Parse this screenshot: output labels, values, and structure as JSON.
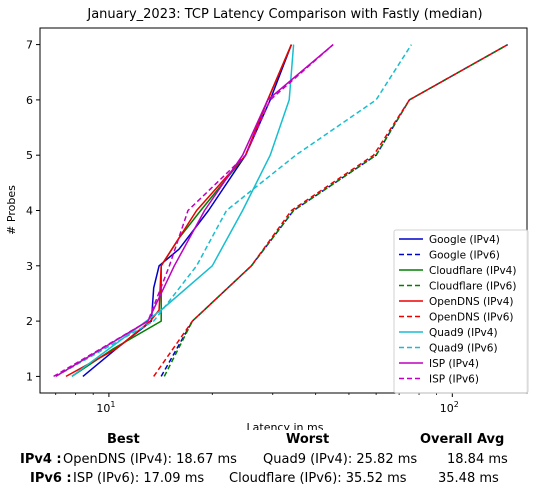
{
  "chart_data": {
    "type": "line",
    "title": "January_2023: TCP Latency Comparison with Fastly (median)",
    "xlabel": "Latency in ms",
    "ylabel": "# Probes",
    "xscale": "log",
    "xlim": [
      6.3,
      165
    ],
    "ylim": [
      0.7,
      7.3
    ],
    "xticks": [
      {
        "value": 10,
        "base": "10",
        "exp": "1"
      },
      {
        "value": 100,
        "base": "10",
        "exp": "2"
      }
    ],
    "yticks": [
      1,
      2,
      3,
      4,
      5,
      6,
      7
    ],
    "legend": "bottom-right",
    "series": [
      {
        "name": "Google (IPv4)",
        "color": "#0000cc",
        "dash": "solid",
        "x": [
          8.4,
          10.5,
          13.3,
          13.5,
          14.0,
          16.0,
          19.5,
          25.0,
          29.5,
          34.0
        ],
        "y": [
          1,
          1.5,
          2,
          2.6,
          3,
          3.3,
          4,
          5,
          6,
          7
        ]
      },
      {
        "name": "Google (IPv6)",
        "color": "#0000cc",
        "dash": "dashed",
        "x": [
          14.2,
          17.5,
          26.0,
          34.5,
          60.0,
          75.0,
          145.0
        ],
        "y": [
          1,
          2,
          3,
          4,
          5,
          6,
          7
        ]
      },
      {
        "name": "Cloudflare (IPv4)",
        "color": "#008000",
        "dash": "solid",
        "x": [
          7.8,
          10.3,
          14.2,
          14.2,
          16.0,
          18.5,
          25.0,
          29.0,
          34.0
        ],
        "y": [
          1,
          1.5,
          2,
          3,
          3.5,
          4,
          5,
          6,
          7
        ]
      },
      {
        "name": "Cloudflare (IPv6)",
        "color": "#008000",
        "dash": "dashed",
        "x": [
          14.5,
          17.5,
          26.0,
          34.5,
          60.0,
          75.0,
          145.0
        ],
        "y": [
          1,
          2,
          3,
          4,
          5,
          6,
          7
        ]
      },
      {
        "name": "OpenDNS (IPv4)",
        "color": "#ee0000",
        "dash": "solid",
        "x": [
          7.5,
          10.5,
          13.2,
          14.0,
          14.2,
          18.0,
          25.0,
          29.0,
          34.0
        ],
        "y": [
          1,
          1.5,
          2,
          2.2,
          3,
          4,
          5,
          6,
          7
        ]
      },
      {
        "name": "OpenDNS (IPv6)",
        "color": "#ee0000",
        "dash": "dashed",
        "x": [
          13.5,
          17.5,
          26.0,
          34.0,
          59.0,
          75.0,
          145.0
        ],
        "y": [
          1,
          2,
          3,
          4,
          5,
          6,
          7
        ]
      },
      {
        "name": "Quad9 (IPv4)",
        "color": "#17becf",
        "dash": "solid",
        "x": [
          7.8,
          14.2,
          20.0,
          24.5,
          29.5,
          33.5,
          34.5
        ],
        "y": [
          1,
          2.2,
          3,
          4,
          5,
          6,
          7
        ]
      },
      {
        "name": "Quad9 (IPv6)",
        "color": "#17becf",
        "dash": "dashed",
        "x": [
          7.0,
          13.5,
          18.0,
          22.0,
          35.0,
          60.0,
          76.0
        ],
        "y": [
          1,
          2,
          3,
          4,
          5,
          6,
          7
        ]
      },
      {
        "name": "ISP (IPv4)",
        "color": "#bf00bf",
        "dash": "solid",
        "x": [
          7.0,
          13.0,
          15.5,
          19.0,
          24.5,
          29.0,
          45.0
        ],
        "y": [
          1,
          2,
          3,
          4,
          5,
          6,
          7
        ]
      },
      {
        "name": "ISP (IPv6)",
        "color": "#bf00bf",
        "dash": "dashed",
        "x": [
          6.9,
          13.0,
          15.0,
          17.0,
          25.0,
          29.5,
          45.0
        ],
        "y": [
          1,
          2,
          3,
          4,
          5,
          6,
          7
        ]
      }
    ]
  },
  "summary": {
    "headers": {
      "best": "Best",
      "worst": "Worst",
      "avg": "Overall Avg"
    },
    "ipv4": {
      "label": "IPv4 :",
      "best": "OpenDNS (IPv4): 18.67 ms",
      "worst": "Quad9 (IPv4): 25.82 ms",
      "avg": "18.84 ms"
    },
    "ipv6": {
      "label": "IPv6 :",
      "best": "ISP (IPv6): 17.09 ms",
      "worst": "Cloudflare (IPv6): 35.52 ms",
      "avg": "35.48 ms"
    }
  }
}
